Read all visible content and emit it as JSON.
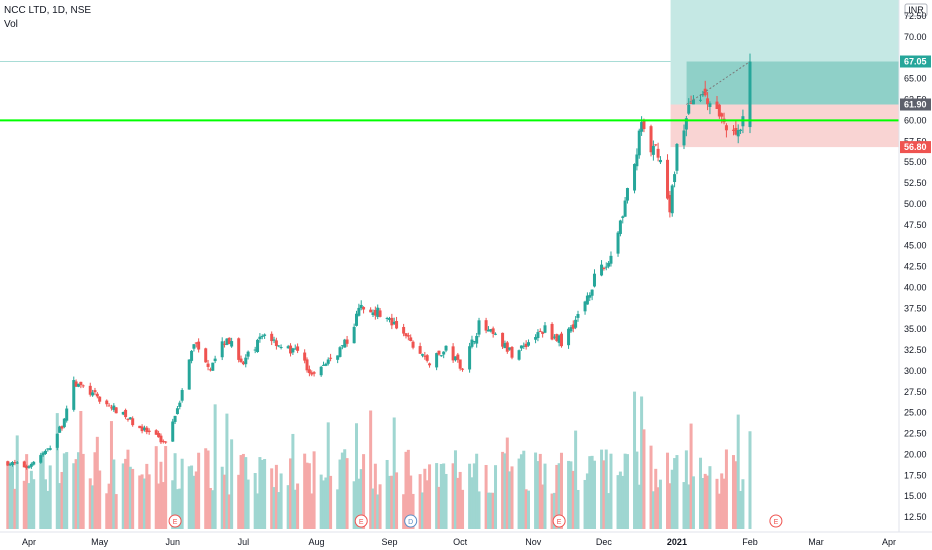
{
  "legend": {
    "title": "NCC LTD, 1D, NSE",
    "indicator": "Vol"
  },
  "colors": {
    "up": "#26a69a",
    "down": "#ef5350",
    "vol_up": "#9fd6d1",
    "vol_down": "#f5a9a8",
    "support_line": "#00ff00",
    "target_zone": "#c5e8e4",
    "profit_zone": "#8fd0c8",
    "stop_zone": "#f9d4d3",
    "event_marker": "#ef5350",
    "dividend_marker": "#5b8fc7"
  },
  "chart_data": {
    "type": "candlestick",
    "currency_label": "INR",
    "y_ticks": [
      "12.50",
      "15.00",
      "17.50",
      "20.00",
      "22.50",
      "25.00",
      "27.50",
      "30.00",
      "32.50",
      "35.00",
      "37.50",
      "40.00",
      "42.50",
      "45.00",
      "47.50",
      "50.00",
      "52.50",
      "55.00",
      "57.50",
      "60.00",
      "62.50",
      "65.00",
      "70.00",
      "72.50"
    ],
    "x_ticks": [
      "Apr",
      "May",
      "Jun",
      "Jul",
      "Aug",
      "Sep",
      "Oct",
      "Nov",
      "Dec",
      "2021",
      "Feb",
      "Mar",
      "Apr"
    ],
    "price_labels": [
      {
        "value": "67.05",
        "color": "#26a69a"
      },
      {
        "value": "61.90",
        "color": "#5d606b"
      },
      {
        "value": "56.80",
        "color": "#ef5350"
      }
    ],
    "support_level": 60.0,
    "position": {
      "entry": 61.9,
      "target": 67.05,
      "stop": 56.8,
      "upper_zone_top": 75.0
    },
    "events": [
      {
        "label": "E",
        "type": "earnings",
        "x_date": "2020-06-02"
      },
      {
        "label": "E",
        "type": "earnings",
        "x_date": "2020-08-20"
      },
      {
        "label": "D",
        "type": "dividend",
        "x_date": "2020-09-10"
      },
      {
        "label": "E",
        "type": "earnings",
        "x_date": "2020-11-12"
      },
      {
        "label": "E",
        "type": "earnings",
        "x_date": "2021-02-12"
      }
    ],
    "anchors": [
      [
        "2020-03-23",
        19.0
      ],
      [
        "2020-03-31",
        18.5
      ],
      [
        "2020-04-09",
        20.5
      ],
      [
        "2020-04-15",
        23.5
      ],
      [
        "2020-04-20",
        28.5
      ],
      [
        "2020-04-24",
        28.0
      ],
      [
        "2020-05-04",
        26.0
      ],
      [
        "2020-05-12",
        24.5
      ],
      [
        "2020-05-19",
        23.0
      ],
      [
        "2020-05-25",
        22.0
      ],
      [
        "2020-05-29",
        21.5
      ],
      [
        "2020-06-05",
        27.5
      ],
      [
        "2020-06-10",
        33.5
      ],
      [
        "2020-06-17",
        30.5
      ],
      [
        "2020-06-24",
        34.0
      ],
      [
        "2020-07-01",
        31.0
      ],
      [
        "2020-07-10",
        34.5
      ],
      [
        "2020-07-17",
        33.0
      ],
      [
        "2020-07-24",
        32.0
      ],
      [
        "2020-07-31",
        29.5
      ],
      [
        "2020-08-07",
        31.5
      ],
      [
        "2020-08-14",
        33.5
      ],
      [
        "2020-08-20",
        38.0
      ],
      [
        "2020-08-28",
        37.0
      ],
      [
        "2020-09-04",
        35.0
      ],
      [
        "2020-09-11",
        33.0
      ],
      [
        "2020-09-18",
        31.0
      ],
      [
        "2020-09-25",
        32.5
      ],
      [
        "2020-10-02",
        30.5
      ],
      [
        "2020-10-09",
        35.5
      ],
      [
        "2020-10-16",
        34.0
      ],
      [
        "2020-10-23",
        32.0
      ],
      [
        "2020-10-30",
        33.5
      ],
      [
        "2020-11-06",
        35.0
      ],
      [
        "2020-11-13",
        33.5
      ],
      [
        "2020-11-20",
        36.5
      ],
      [
        "2020-11-27",
        41.0
      ],
      [
        "2020-12-03",
        43.0
      ],
      [
        "2020-12-08",
        48.0
      ],
      [
        "2020-12-14",
        55.0
      ],
      [
        "2020-12-17",
        59.5
      ],
      [
        "2020-12-21",
        56.0
      ],
      [
        "2020-12-24",
        56.5
      ],
      [
        "2020-12-29",
        49.0
      ],
      [
        "2021-01-01",
        57.0
      ],
      [
        "2021-01-05",
        60.0
      ],
      [
        "2021-01-08",
        63.5
      ],
      [
        "2021-01-13",
        62.5
      ],
      [
        "2021-01-19",
        60.5
      ],
      [
        "2021-01-25",
        58.5
      ],
      [
        "2021-01-29",
        59.5
      ],
      [
        "2021-02-01",
        67.05
      ]
    ]
  }
}
